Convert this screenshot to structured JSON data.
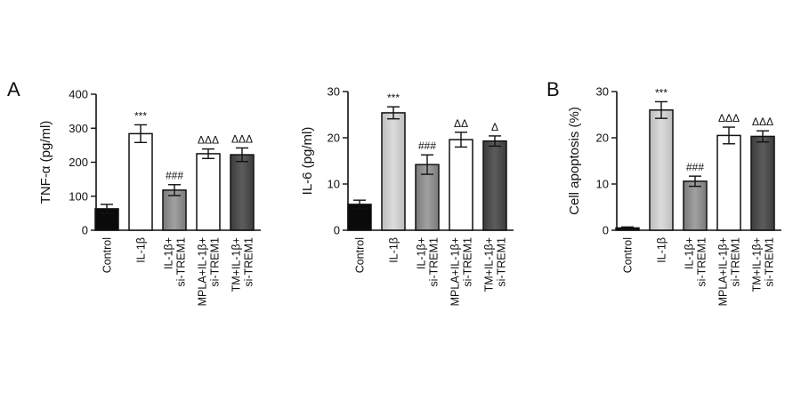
{
  "panels": [
    {
      "letter": "A"
    },
    {
      "letter": ""
    },
    {
      "letter": "B"
    }
  ],
  "chart_data": [
    {
      "type": "bar",
      "title": "",
      "xlabel": "",
      "ylabel": "TNF-α (pg/ml)",
      "ylim": [
        0,
        400
      ],
      "yticks": [
        0,
        100,
        200,
        300,
        400
      ],
      "categories": [
        [
          "Control"
        ],
        [
          "IL-1β"
        ],
        [
          "IL-1β+",
          "si-TREM1"
        ],
        [
          "MPLA+IL-1β+",
          "si-TREM1"
        ],
        [
          "TM+IL-1β+",
          "si-TREM1"
        ]
      ],
      "values": [
        63,
        284,
        118,
        225,
        222
      ],
      "errors": [
        13,
        26,
        16,
        14,
        20
      ],
      "annotations": [
        "",
        "***",
        "###",
        "ΔΔΔ",
        "ΔΔΔ"
      ],
      "colors": [
        "#0a0a0a",
        "#ffffff",
        "#888888",
        "#ffffff",
        "#4a4a4a"
      ],
      "grid": false
    },
    {
      "type": "bar",
      "title": "",
      "xlabel": "",
      "ylabel": "IL-6 (pg/ml)",
      "ylim": [
        0,
        30
      ],
      "yticks": [
        0,
        10,
        20,
        30
      ],
      "categories": [
        [
          "Control"
        ],
        [
          "IL-1β"
        ],
        [
          "IL-1β+",
          "si-TREM1"
        ],
        [
          "MPLA+IL-1β+",
          "si-TREM1"
        ],
        [
          "TM+IL-1β+",
          "si-TREM1"
        ]
      ],
      "values": [
        5.6,
        25.4,
        14.2,
        19.6,
        19.3
      ],
      "errors": [
        0.9,
        1.3,
        2.1,
        1.6,
        1.1
      ],
      "annotations": [
        "",
        "***",
        "###",
        "ΔΔ",
        "Δ"
      ],
      "colors": [
        "#0a0a0a",
        "#c8c8c8",
        "#888888",
        "#ffffff",
        "#4a4a4a"
      ],
      "grid": false
    },
    {
      "type": "bar",
      "title": "",
      "xlabel": "",
      "ylabel": "Cell apoptosis (%)",
      "ylim": [
        0,
        30
      ],
      "yticks": [
        0,
        10,
        20,
        30
      ],
      "categories": [
        [
          "Control"
        ],
        [
          "IL-1β"
        ],
        [
          "IL-1β+",
          "si-TREM1"
        ],
        [
          "MPLA+IL-1β+",
          "si-TREM1"
        ],
        [
          "TM+IL-1β+",
          "si-TREM1"
        ]
      ],
      "values": [
        0.5,
        26.0,
        10.6,
        20.5,
        20.3
      ],
      "errors": [
        0.2,
        1.8,
        1.1,
        1.8,
        1.2
      ],
      "annotations": [
        "",
        "***",
        "###",
        "ΔΔΔ",
        "ΔΔΔ"
      ],
      "colors": [
        "#0a0a0a",
        "#c8c8c8",
        "#888888",
        "#ffffff",
        "#4a4a4a"
      ],
      "grid": false
    }
  ]
}
